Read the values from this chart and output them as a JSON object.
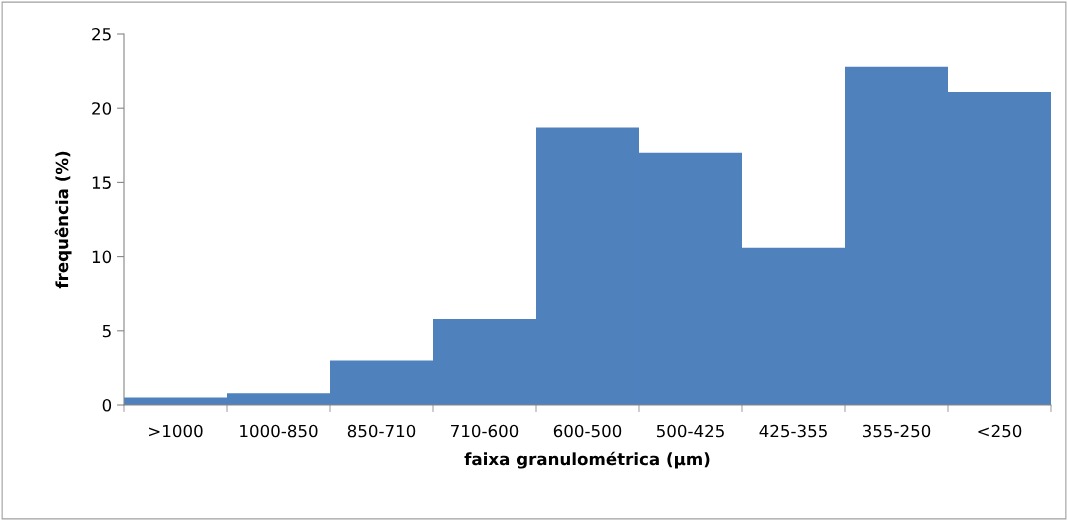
{
  "chart_data": {
    "type": "bar",
    "xlabel": "faixa granulométrica (μm)",
    "ylabel": "frequência (%)",
    "categories": [
      ">1000",
      "1000-850",
      "850-710",
      "710-600",
      "600-500",
      "500-425",
      "425-355",
      "355-250",
      "<250"
    ],
    "values": [
      0.5,
      0.8,
      3.0,
      5.8,
      18.7,
      17.0,
      10.6,
      22.8,
      21.1
    ],
    "color": "#4f81bd",
    "ylim": [
      0,
      25
    ],
    "yticks": [
      0,
      5,
      10,
      15,
      20,
      25
    ],
    "grid": false,
    "legend": false
  }
}
